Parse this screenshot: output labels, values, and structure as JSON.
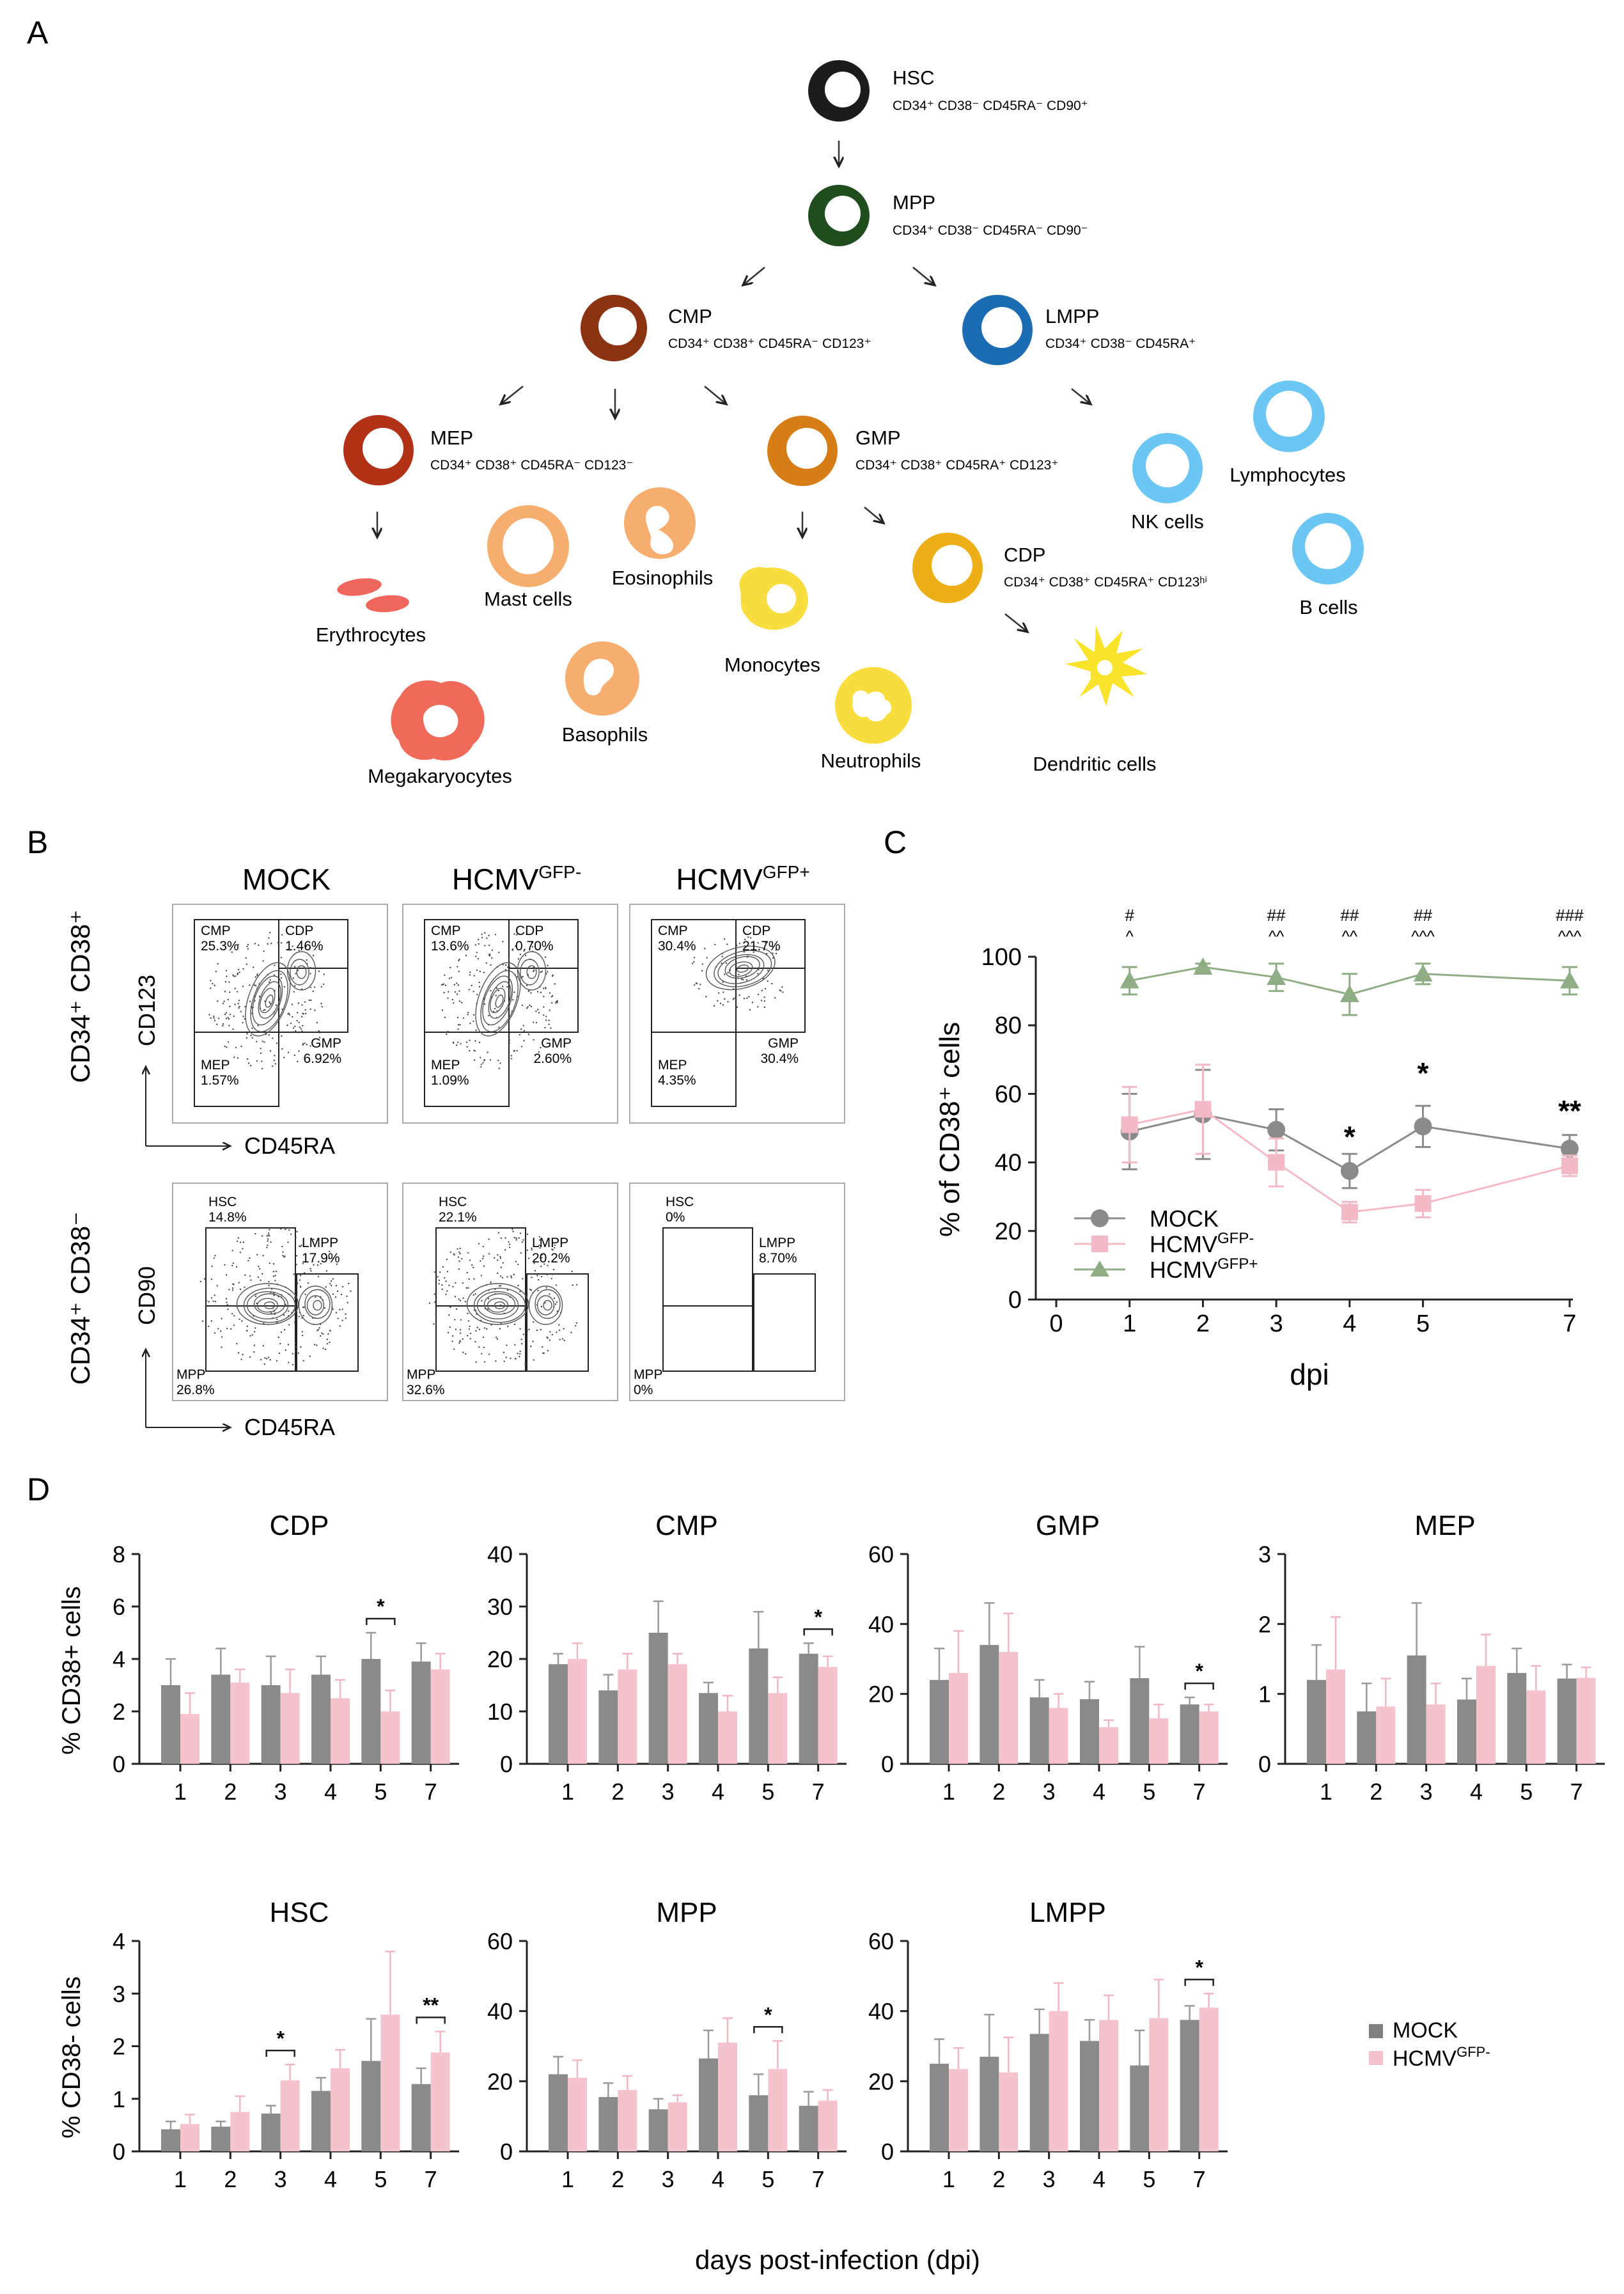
{
  "panels": {
    "A": {
      "letter": "A",
      "cells": [
        {
          "id": "hsc",
          "name": "HSC",
          "markers": "CD34⁺ CD38⁻ CD45RA⁻ CD90⁺",
          "color": "#1c1c1c"
        },
        {
          "id": "mpp",
          "name": "MPP",
          "markers": "CD34⁺ CD38⁻ CD45RA⁻ CD90⁻",
          "color": "#1f4d1e"
        },
        {
          "id": "cmp",
          "name": "CMP",
          "markers": "CD34⁺ CD38⁺ CD45RA⁻ CD123⁺",
          "color": "#8b3311"
        },
        {
          "id": "lmpp",
          "name": "LMPP",
          "markers": "CD34⁺ CD38⁻ CD45RA⁺",
          "color": "#1c6cb3"
        },
        {
          "id": "mep",
          "name": "MEP",
          "markers": "CD34⁺ CD38⁺ CD45RA⁻ CD123⁻",
          "color": "#b23218"
        },
        {
          "id": "gmp",
          "name": "GMP",
          "markers": "CD34⁺ CD38⁺ CD45RA⁺ CD123⁺",
          "color": "#d77d18"
        },
        {
          "id": "cdp",
          "name": "CDP",
          "markers": "CD34⁺ CD38⁺ CD45RA⁺ CD123ʰⁱ",
          "color": "#eeae16"
        }
      ],
      "mature": [
        {
          "id": "erythrocytes",
          "name": "Erythrocytes",
          "color": "#f0665c"
        },
        {
          "id": "megakaryocytes",
          "name": "Megakaryocytes",
          "color": "#f06a5a"
        },
        {
          "id": "mast",
          "name": "Mast cells",
          "color": "#f7ad6e"
        },
        {
          "id": "eosinophils",
          "name": "Eosinophils",
          "color": "#f7ad6e"
        },
        {
          "id": "basophils",
          "name": "Basophils",
          "color": "#f7ad6e"
        },
        {
          "id": "monocytes",
          "name": "Monocytes",
          "color": "#f9dd3c"
        },
        {
          "id": "neutrophils",
          "name": "Neutrophils",
          "color": "#f9dd3c"
        },
        {
          "id": "dendritic",
          "name": "Dendritic cells",
          "color": "#f9e22a"
        },
        {
          "id": "nk",
          "name": "NK cells",
          "color": "#6cc6f3"
        },
        {
          "id": "lymphocytes",
          "name": "Lymphocytes",
          "color": "#6cc6f3"
        },
        {
          "id": "bcells",
          "name": "B cells",
          "color": "#6cc6f3"
        }
      ]
    },
    "B": {
      "letter": "B",
      "col_titles": [
        {
          "main": "MOCK",
          "sup": ""
        },
        {
          "main": "HCMV",
          "sup": "GFP-"
        },
        {
          "main": "HCMV",
          "sup": "GFP+"
        }
      ],
      "row1": {
        "row_label": "CD34⁺ CD38⁺",
        "y_axis": "CD123",
        "x_axis": "CD45RA",
        "plots": [
          {
            "CMP": "CMP",
            "CMP_v": "25.3%",
            "CDP": "CDP",
            "CDP_v": "1.46%",
            "GMP": "GMP",
            "GMP_v": "6.92%",
            "MEP": "MEP",
            "MEP_v": "1.57%"
          },
          {
            "CMP": "CMP",
            "CMP_v": "13.6%",
            "CDP": "CDP",
            "CDP_v": "0.70%",
            "GMP": "GMP",
            "GMP_v": "2.60%",
            "MEP": "MEP",
            "MEP_v": "1.09%"
          },
          {
            "CMP": "CMP",
            "CMP_v": "30.4%",
            "CDP": "CDP",
            "CDP_v": "21.7%",
            "GMP": "GMP",
            "GMP_v": "30.4%",
            "MEP": "MEP",
            "MEP_v": "4.35%"
          }
        ]
      },
      "row2": {
        "row_label": "CD34⁺ CD38⁻",
        "y_axis": "CD90",
        "x_axis": "CD45RA",
        "plots": [
          {
            "HSC": "HSC",
            "HSC_v": "14.8%",
            "LMPP": "LMPP",
            "LMPP_v": "17.9%",
            "MPP": "MPP",
            "MPP_v": "26.8%"
          },
          {
            "HSC": "HSC",
            "HSC_v": "22.1%",
            "LMPP": "LMPP",
            "LMPP_v": "20.2%",
            "MPP": "MPP",
            "MPP_v": "32.6%"
          },
          {
            "HSC": "HSC",
            "HSC_v": "0%",
            "LMPP": "LMPP",
            "LMPP_v": "8.70%",
            "MPP": "MPP",
            "MPP_v": "0%"
          }
        ]
      }
    },
    "C": {
      "letter": "C"
    },
    "D": {
      "letter": "D",
      "x_title": "days post-infection (dpi)",
      "ylabel_top": "% CD38+ cells",
      "ylabel_bottom": "% CD38- cells",
      "legend": [
        {
          "main": "MOCK",
          "sup": "",
          "color": "#808080"
        },
        {
          "main": "HCMV",
          "sup": "GFP-",
          "color": "#f5c3cd"
        }
      ]
    }
  },
  "chart_data": [
    {
      "type": "line",
      "id": "C",
      "title": "",
      "xlabel": "dpi",
      "ylabel": "% of CD38⁺ cells",
      "xlim": [
        0,
        7
      ],
      "ylim": [
        0,
        100
      ],
      "xticks": [
        0,
        1,
        2,
        3,
        4,
        5,
        7
      ],
      "yticks": [
        0,
        20,
        40,
        60,
        80,
        100
      ],
      "series": [
        {
          "name": "MOCK",
          "sup": "",
          "color": "#8a8a8a",
          "marker": "circle",
          "x": [
            1,
            2,
            3,
            4,
            5,
            7
          ],
          "y": [
            49,
            54,
            49.5,
            37.5,
            50.5,
            44
          ],
          "err": [
            11,
            13,
            6,
            5,
            6,
            4
          ]
        },
        {
          "name": "HCMV",
          "sup": "GFP-",
          "color": "#f3b9c6",
          "marker": "square",
          "x": [
            1,
            2,
            3,
            4,
            5,
            7
          ],
          "y": [
            51,
            55.5,
            40,
            25.5,
            28,
            39
          ],
          "err": [
            11,
            13,
            7,
            3,
            4,
            3
          ]
        },
        {
          "name": "HCMV",
          "sup": "GFP+",
          "color": "#8fad84",
          "marker": "triangle",
          "x": [
            1,
            2,
            3,
            4,
            5,
            7
          ],
          "y": [
            93,
            97,
            94,
            89,
            95,
            93
          ],
          "err": [
            4,
            1,
            4,
            6,
            3,
            4
          ]
        }
      ],
      "annotations": [
        {
          "x": 1,
          "hash": "#",
          "caret": "^"
        },
        {
          "x": 3,
          "hash": "##",
          "caret": "^^"
        },
        {
          "x": 4,
          "hash": "##",
          "caret": "^^"
        },
        {
          "x": 5,
          "hash": "##",
          "caret": "^^^"
        },
        {
          "x": 7,
          "hash": "###",
          "caret": "^^^"
        }
      ],
      "stars": [
        {
          "x": 4,
          "y": 47.5,
          "text": "*"
        },
        {
          "x": 5,
          "y": 66,
          "text": "*"
        },
        {
          "x": 7,
          "y": 55,
          "text": "**"
        }
      ]
    },
    {
      "type": "bar",
      "id": "D-CDP",
      "title": "CDP",
      "categories": [
        "1",
        "2",
        "3",
        "4",
        "5",
        "7"
      ],
      "ylim": [
        0,
        8
      ],
      "yticks": [
        0,
        2,
        4,
        6,
        8
      ],
      "series": [
        {
          "name": "MOCK",
          "values": [
            3.0,
            3.4,
            3.0,
            3.4,
            4.0,
            3.9
          ],
          "err": [
            1.0,
            1.0,
            1.1,
            0.7,
            1.0,
            0.7
          ]
        },
        {
          "name": "HCMV GFP-",
          "values": [
            1.9,
            3.1,
            2.7,
            2.5,
            2.0,
            3.6
          ],
          "err": [
            0.8,
            0.5,
            0.9,
            0.7,
            0.8,
            0.6
          ]
        }
      ],
      "sig": [
        {
          "index": 4,
          "text": "*"
        }
      ]
    },
    {
      "type": "bar",
      "id": "D-CMP",
      "title": "CMP",
      "categories": [
        "1",
        "2",
        "3",
        "4",
        "5",
        "7"
      ],
      "ylim": [
        0,
        40
      ],
      "yticks": [
        0,
        10,
        20,
        30,
        40
      ],
      "series": [
        {
          "name": "MOCK",
          "values": [
            19,
            14,
            25,
            13.5,
            22,
            21
          ],
          "err": [
            2,
            3,
            6,
            2,
            7,
            2
          ]
        },
        {
          "name": "HCMV GFP-",
          "values": [
            20,
            18,
            19,
            10,
            13.5,
            18.5
          ],
          "err": [
            3,
            3,
            2,
            3,
            3,
            2
          ]
        }
      ],
      "sig": [
        {
          "index": 5,
          "text": "*"
        }
      ]
    },
    {
      "type": "bar",
      "id": "D-GMP",
      "title": "GMP",
      "categories": [
        "1",
        "2",
        "3",
        "4",
        "5",
        "7"
      ],
      "ylim": [
        0,
        60
      ],
      "yticks": [
        0,
        20,
        40,
        60
      ],
      "series": [
        {
          "name": "MOCK",
          "values": [
            24,
            34,
            19,
            18.5,
            24.5,
            17
          ],
          "err": [
            9,
            12,
            5,
            5,
            9,
            2
          ]
        },
        {
          "name": "HCMV GFP-",
          "values": [
            26,
            32,
            16,
            10.5,
            13,
            15
          ],
          "err": [
            12,
            11,
            4,
            2,
            4,
            2
          ]
        }
      ],
      "sig": [
        {
          "index": 5,
          "text": "*"
        }
      ]
    },
    {
      "type": "bar",
      "id": "D-MEP",
      "title": "MEP",
      "categories": [
        "1",
        "2",
        "3",
        "4",
        "5",
        "7"
      ],
      "ylim": [
        0,
        3
      ],
      "yticks": [
        0,
        1,
        2,
        3
      ],
      "series": [
        {
          "name": "MOCK",
          "values": [
            1.2,
            0.75,
            1.55,
            0.92,
            1.3,
            1.22
          ],
          "err": [
            0.5,
            0.4,
            0.75,
            0.3,
            0.35,
            0.2
          ]
        },
        {
          "name": "HCMV GFP-",
          "values": [
            1.35,
            0.82,
            0.85,
            1.4,
            1.05,
            1.23
          ],
          "err": [
            0.75,
            0.4,
            0.3,
            0.45,
            0.35,
            0.15
          ]
        }
      ],
      "sig": []
    },
    {
      "type": "bar",
      "id": "D-HSC",
      "title": "HSC",
      "categories": [
        "1",
        "2",
        "3",
        "4",
        "5",
        "7"
      ],
      "ylim": [
        0,
        4
      ],
      "yticks": [
        0,
        1,
        2,
        3,
        4
      ],
      "series": [
        {
          "name": "MOCK",
          "values": [
            0.42,
            0.47,
            0.72,
            1.15,
            1.72,
            1.28
          ],
          "err": [
            0.15,
            0.1,
            0.15,
            0.25,
            0.8,
            0.3
          ]
        },
        {
          "name": "HCMV GFP-",
          "values": [
            0.52,
            0.75,
            1.35,
            1.58,
            2.6,
            1.88
          ],
          "err": [
            0.18,
            0.3,
            0.3,
            0.35,
            1.2,
            0.4
          ]
        }
      ],
      "sig": [
        {
          "index": 2,
          "text": "*"
        },
        {
          "index": 5,
          "text": "**"
        }
      ]
    },
    {
      "type": "bar",
      "id": "D-MPP",
      "title": "MPP",
      "categories": [
        "1",
        "2",
        "3",
        "4",
        "5",
        "7"
      ],
      "ylim": [
        0,
        60
      ],
      "yticks": [
        0,
        20,
        40,
        60
      ],
      "series": [
        {
          "name": "MOCK",
          "values": [
            22,
            15.5,
            12,
            26.5,
            16,
            13
          ],
          "err": [
            5,
            4,
            3,
            8,
            6,
            4
          ]
        },
        {
          "name": "HCMV GFP-",
          "values": [
            21,
            17.5,
            14,
            31,
            23.5,
            14.5
          ],
          "err": [
            5,
            4,
            2,
            7,
            8,
            3
          ]
        }
      ],
      "sig": [
        {
          "index": 4,
          "text": "*"
        }
      ]
    },
    {
      "type": "bar",
      "id": "D-LMPP",
      "title": "LMPP",
      "categories": [
        "1",
        "2",
        "3",
        "4",
        "5",
        "7"
      ],
      "ylim": [
        0,
        60
      ],
      "yticks": [
        0,
        20,
        40,
        60
      ],
      "series": [
        {
          "name": "MOCK",
          "values": [
            25,
            27,
            33.5,
            31.5,
            24.5,
            37.5
          ],
          "err": [
            7,
            12,
            7,
            6,
            10,
            4
          ]
        },
        {
          "name": "HCMV GFP-",
          "values": [
            23.5,
            22.5,
            40,
            37.5,
            38,
            41
          ],
          "err": [
            6,
            10,
            8,
            7,
            11,
            4
          ]
        }
      ],
      "sig": [
        {
          "index": 5,
          "text": "*"
        }
      ]
    }
  ]
}
